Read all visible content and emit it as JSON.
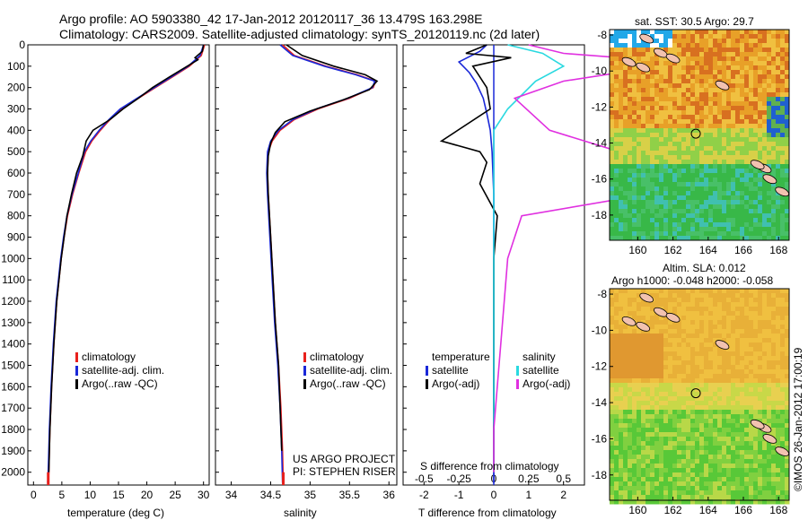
{
  "header": {
    "line1": "Argo profile: AO 5903380_42 17-Jan-2012 20120117_36 13.479S 163.298E",
    "line2": "Climatology: CARS2009. Satellite-adjusted climatology: synTS_20120119.nc (2d later)"
  },
  "colors": {
    "climatology": "#e8201c",
    "satellite_adj": "#1a28d8",
    "argo": "#000000",
    "salinity_satellite": "#2ad9e0",
    "salinity_argo": "#e030e0"
  },
  "chart_data": [
    {
      "type": "line",
      "xlabel": "temperature (deg C)",
      "ylabel": "",
      "xlim": [
        -1,
        31
      ],
      "ylim": [
        2060,
        0
      ],
      "xticks": [
        0,
        5,
        10,
        15,
        20,
        25,
        30
      ],
      "yticks": [
        0,
        100,
        200,
        300,
        400,
        500,
        600,
        700,
        800,
        900,
        1000,
        1100,
        1200,
        1300,
        1400,
        1500,
        1600,
        1700,
        1800,
        1900,
        2000
      ],
      "legend": [
        "climatology",
        "satellite-adj. clim.",
        "Argo(..raw -QC)"
      ],
      "legend_position": "lower-left",
      "series": [
        {
          "name": "climatology",
          "x": [
            30.2,
            29.6,
            27.5,
            24.5,
            21.5,
            18.5,
            15.5,
            13.5,
            11.8,
            10.3,
            9.2,
            8.0,
            6.9,
            6.0,
            5.4,
            4.9,
            4.5,
            4.1,
            3.6,
            3.2,
            2.9,
            2.7,
            2.6
          ],
          "y": [
            0,
            50,
            100,
            150,
            200,
            250,
            300,
            350,
            400,
            450,
            500,
            600,
            700,
            800,
            900,
            1000,
            1100,
            1200,
            1400,
            1600,
            1800,
            2000,
            2050
          ]
        },
        {
          "name": "satellite-adj. clim.",
          "x": [
            30.0,
            29.4,
            27.3,
            24.3,
            21.3,
            18.3,
            15.3,
            13.3,
            11.6,
            10.1,
            9.0,
            7.9,
            6.8,
            5.9,
            5.3,
            4.8,
            4.4,
            4.0,
            3.5,
            3.1,
            2.8,
            2.6,
            2.5
          ],
          "y": [
            0,
            50,
            100,
            150,
            200,
            250,
            300,
            350,
            400,
            450,
            500,
            600,
            700,
            800,
            900,
            1000,
            1100,
            1200,
            1400,
            1600,
            1800,
            2000,
            2050
          ]
        },
        {
          "name": "Argo(..raw -QC)",
          "x": [
            30.0,
            29.8,
            28.5,
            29.0,
            24.0,
            21.0,
            18.5,
            15.8,
            13.5,
            10.5,
            9.3,
            8.7,
            7.6,
            6.7,
            5.9,
            5.4,
            4.9,
            4.5,
            4.1,
            3.6,
            3.2,
            2.9,
            2.7
          ],
          "y": [
            0,
            30,
            60,
            70,
            150,
            200,
            250,
            300,
            350,
            400,
            450,
            520,
            600,
            700,
            800,
            900,
            1000,
            1100,
            1200,
            1400,
            1600,
            1800,
            2000
          ]
        }
      ]
    },
    {
      "type": "line",
      "xlabel": "salinity",
      "ylabel": "",
      "xlim": [
        33.8,
        36.1
      ],
      "ylim": [
        2060,
        0
      ],
      "xticks": [
        34,
        34.5,
        35,
        35.5,
        36
      ],
      "legend": [
        "climatology",
        "satellite-adj. clim.",
        "Argo(..raw -QC)"
      ],
      "legend_position": "lower-left",
      "annotation": [
        "US ARGO PROJECT",
        "PI: STEPHEN RISER"
      ],
      "series": [
        {
          "name": "climatology",
          "x": [
            34.65,
            34.8,
            35.2,
            35.6,
            35.83,
            35.8,
            35.5,
            35.1,
            34.8,
            34.62,
            34.52,
            34.47,
            34.46,
            34.47,
            34.5,
            34.53,
            34.56,
            34.6,
            34.63,
            34.65,
            34.66
          ],
          "y": [
            0,
            50,
            100,
            140,
            170,
            200,
            250,
            300,
            350,
            400,
            450,
            500,
            600,
            700,
            900,
            1100,
            1300,
            1500,
            1700,
            1900,
            2050
          ]
        },
        {
          "name": "satellite-adj. clim.",
          "x": [
            34.62,
            34.78,
            35.18,
            35.58,
            35.82,
            35.79,
            35.48,
            35.08,
            34.78,
            34.6,
            34.5,
            34.46,
            34.45,
            34.46,
            34.49,
            34.52,
            34.55,
            34.59,
            34.62,
            34.64,
            34.65
          ],
          "y": [
            0,
            50,
            100,
            140,
            170,
            200,
            250,
            300,
            350,
            400,
            450,
            500,
            600,
            700,
            900,
            1100,
            1300,
            1500,
            1700,
            1900,
            2050
          ]
        },
        {
          "name": "Argo(..raw -QC)",
          "x": [
            34.7,
            34.9,
            35.3,
            35.7,
            35.85,
            35.75,
            35.4,
            35.0,
            34.68,
            34.56,
            34.5,
            34.47,
            34.46,
            34.47,
            34.5,
            34.53,
            34.56,
            34.6,
            34.62,
            34.64
          ],
          "y": [
            0,
            50,
            100,
            140,
            170,
            210,
            260,
            310,
            360,
            410,
            460,
            520,
            600,
            700,
            900,
            1100,
            1300,
            1500,
            1700,
            1900
          ]
        }
      ]
    },
    {
      "type": "line",
      "xlabel": "T difference from climatology",
      "xlabel_top": "S difference from climatology",
      "xlim": [
        -2.6,
        2.6
      ],
      "ylim": [
        2060,
        0
      ],
      "xticks": [
        -2,
        -1,
        0,
        1,
        2
      ],
      "xticks_s": [
        -0.5,
        -0.25,
        0,
        0.25,
        0.5
      ],
      "legend_temperature": {
        "title": "temperature",
        "items": [
          "satellite",
          "Argo(-adj)"
        ]
      },
      "legend_salinity": {
        "title": "salinity",
        "items": [
          "satellite",
          "Argo(-adj)"
        ]
      },
      "series": [
        {
          "name": "temperature satellite",
          "x": [
            -0.2,
            -0.4,
            -1.0,
            -0.7,
            -0.5,
            -0.3,
            -0.2,
            -0.1,
            -0.05,
            0.0,
            0.0,
            0.0,
            0.0,
            0.0,
            0.0
          ],
          "y": [
            0,
            30,
            80,
            130,
            180,
            250,
            320,
            400,
            500,
            700,
            900,
            1200,
            1500,
            1800,
            2050
          ]
        },
        {
          "name": "temperature Argo(-adj)",
          "x": [
            -0.2,
            -0.8,
            0.5,
            -0.6,
            -0.2,
            -0.1,
            -1.5,
            -0.4,
            -0.2,
            -0.4,
            0.1,
            0.0,
            0.0,
            0.0,
            0.0,
            0.0
          ],
          "y": [
            0,
            40,
            60,
            100,
            200,
            300,
            450,
            500,
            550,
            650,
            800,
            1000,
            1200,
            1500,
            1800,
            2000
          ]
        },
        {
          "name": "salinity satellite",
          "x": [
            0.1,
            0.35,
            0.5,
            0.3,
            0.1,
            0.0,
            0.0,
            0.0,
            0.0,
            0.0,
            0.0
          ],
          "y": [
            0,
            40,
            100,
            170,
            300,
            400,
            500,
            600,
            800,
            1200,
            2000
          ]
        },
        {
          "name": "salinity Argo(-adj)",
          "x": [
            0.25,
            0.5,
            1.3,
            1.0,
            0.5,
            0.15,
            0.4,
            0.9,
            1.1,
            0.2,
            0.1,
            0.05,
            0.0,
            0.0
          ],
          "y": [
            0,
            40,
            80,
            120,
            170,
            250,
            400,
            500,
            700,
            800,
            1000,
            1400,
            1800,
            2000
          ]
        }
      ]
    },
    {
      "type": "heatmap",
      "title": "sat. SST: 30.5  Argo: 29.7",
      "xlim": [
        158.4,
        168.6
      ],
      "ylim": [
        -19.4,
        -7.7
      ],
      "xticks": [
        160,
        162,
        164,
        166,
        168
      ],
      "yticks": [
        -8,
        -10,
        -12,
        -14,
        -16,
        -18
      ],
      "marker": {
        "lon": 163.298,
        "lat": -13.479
      }
    },
    {
      "type": "heatmap",
      "title_line1": "Altim. SLA: 0.012",
      "title_line2": "Argo h1000: -0.048  h2000: -0.058",
      "xlim": [
        158.4,
        168.6
      ],
      "ylim": [
        -19.4,
        -7.7
      ],
      "xticks": [
        160,
        162,
        164,
        166,
        168
      ],
      "yticks": [
        -8,
        -10,
        -12,
        -14,
        -16,
        -18
      ],
      "marker": {
        "lon": 163.298,
        "lat": -13.479
      }
    }
  ],
  "legend_labels": {
    "climatology": "climatology",
    "satellite": "satellite-adj. clim.",
    "argo": "Argo(..raw -QC)"
  },
  "panel3_legend": {
    "temperature": "temperature",
    "salinity": "salinity",
    "satellite": "satellite",
    "argo": "Argo(-adj)"
  },
  "labels": {
    "temp_xlabel": "temperature (deg C)",
    "sal_xlabel": "salinity",
    "tdiff_xlabel": "T difference from climatology",
    "sdiff_xlabel": "S difference from climatology",
    "project1": "US ARGO PROJECT",
    "project2": "PI: STEPHEN RISER",
    "sst_title": "sat. SST: 30.5  Argo: 29.7",
    "sla_title1": "Altim. SLA: 0.012",
    "sla_title2": "Argo h1000: -0.048  h2000: -0.058",
    "credit": "©IMOS 26-Jan-2012 17:00:19"
  }
}
